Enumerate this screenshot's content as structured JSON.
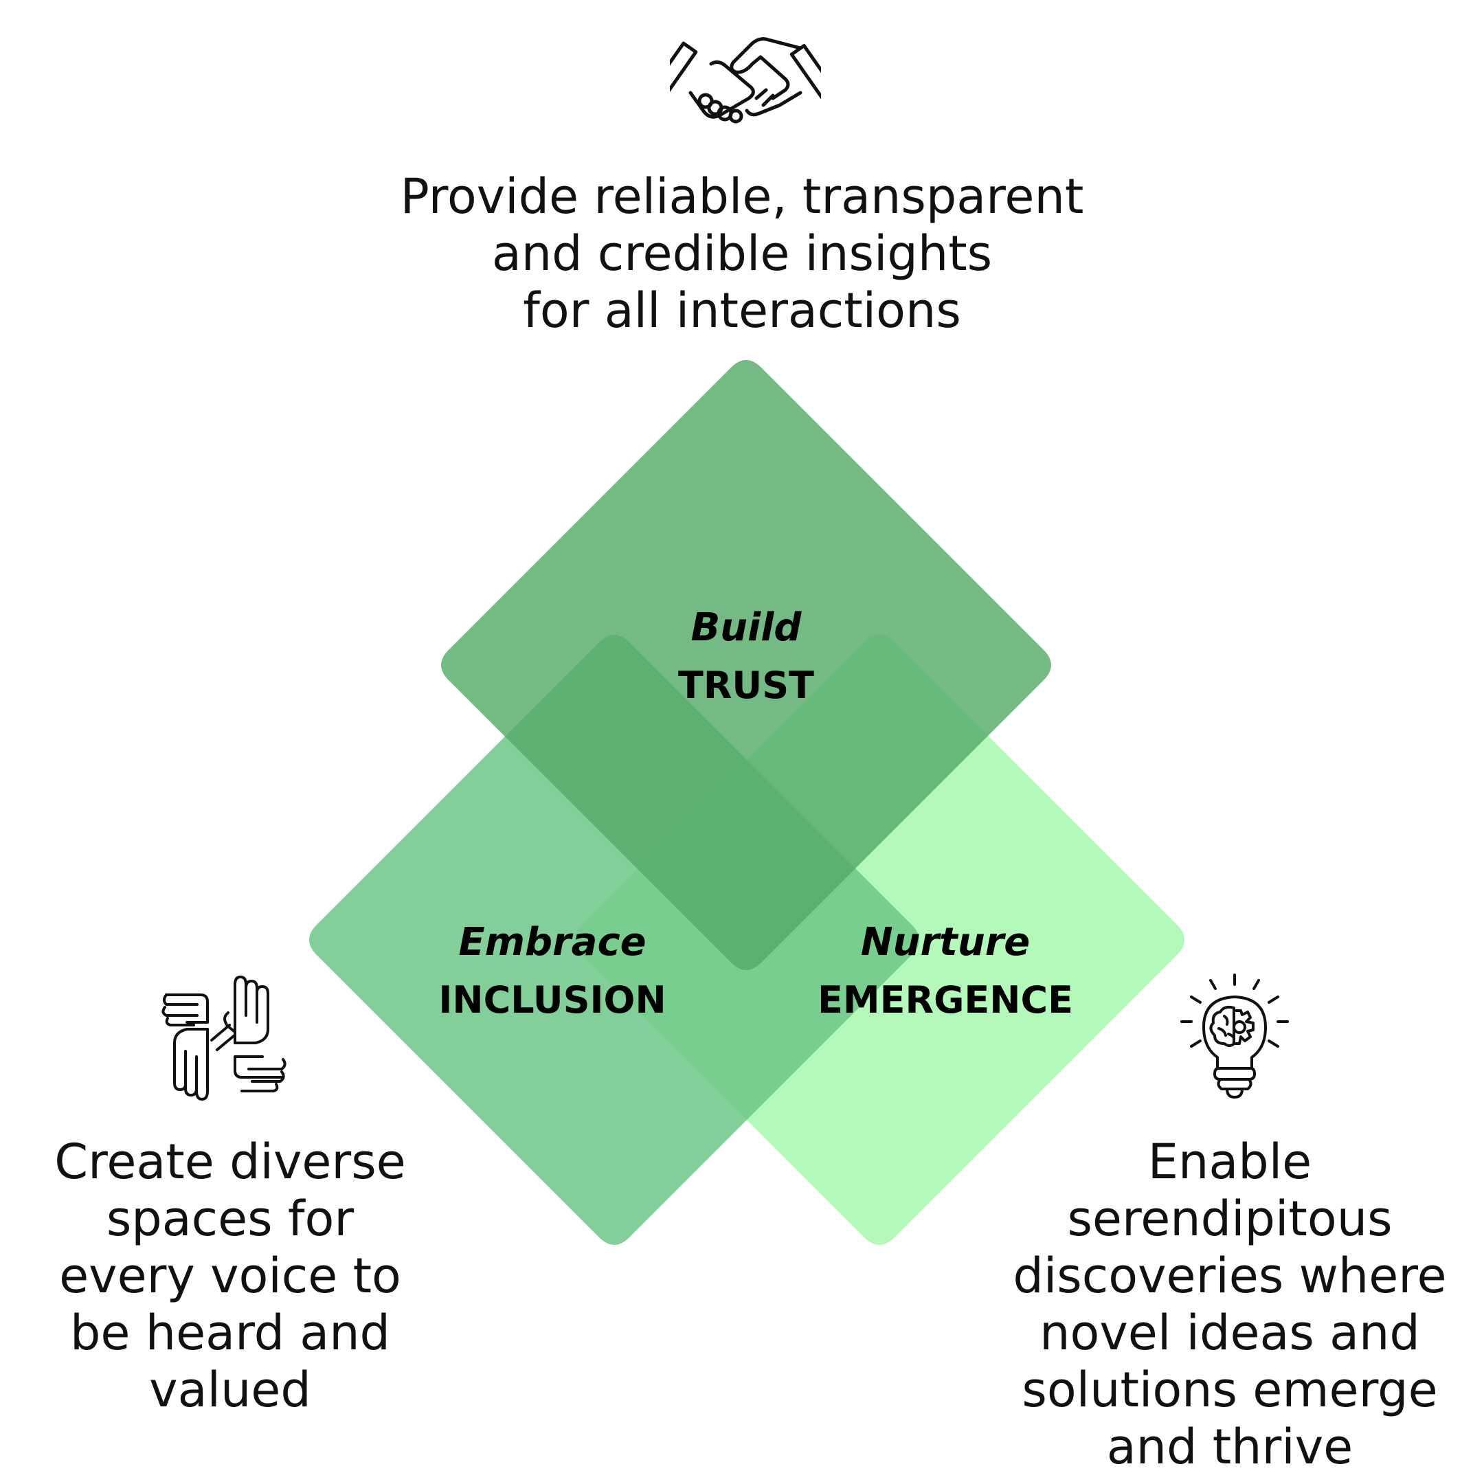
{
  "top": {
    "lines": [
      "Provide reliable, transparent",
      "and credible insights",
      "for all interactions"
    ],
    "icon": "handshake-icon"
  },
  "left": {
    "lines": [
      "Create diverse",
      "spaces for",
      "every voice to",
      "be heard and",
      "valued"
    ],
    "icon": "hands-circle-icon"
  },
  "right": {
    "lines": [
      "Enable",
      "serendipitous",
      "discoveries where",
      "novel ideas and",
      "solutions emerge",
      "and thrive"
    ],
    "icon": "lightbulb-brain-gear-icon"
  },
  "pillars": {
    "trust": {
      "verb": "Build",
      "noun": "TRUST",
      "color": "#55ab6a"
    },
    "inclusion": {
      "verb": "Embrace",
      "noun": "INCLUSION",
      "color": "#6cc787"
    },
    "emergence": {
      "verb": "Nurture",
      "noun": "EMERGENCE",
      "color": "#a8f8b0"
    }
  }
}
